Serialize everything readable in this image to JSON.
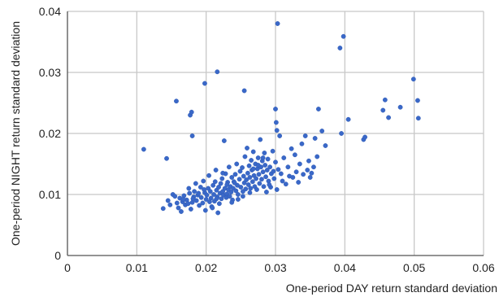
{
  "chart_data": {
    "type": "scatter",
    "xlabel": "One-period DAY return standard deviation",
    "ylabel": "One-period NIGHT return standard deviation",
    "xlim": [
      0,
      0.06
    ],
    "ylim": [
      0,
      0.04
    ],
    "xticks": [
      "0",
      "0.01",
      "0.02",
      "0.03",
      "0.04",
      "0.05",
      "0.06"
    ],
    "yticks": [
      "0",
      "0.01",
      "0.02",
      "0.03",
      "0.04"
    ],
    "grid": true,
    "marker_color": "#3a68c8",
    "series": [
      {
        "points": [
          [
            0.011,
            0.0174
          ],
          [
            0.0143,
            0.0159
          ],
          [
            0.0157,
            0.0253
          ],
          [
            0.0177,
            0.023
          ],
          [
            0.0179,
            0.0235
          ],
          [
            0.018,
            0.0196
          ],
          [
            0.0198,
            0.0282
          ],
          [
            0.0216,
            0.0301
          ],
          [
            0.0255,
            0.027
          ],
          [
            0.03,
            0.024
          ],
          [
            0.0303,
            0.038
          ],
          [
            0.0301,
            0.0218
          ],
          [
            0.0302,
            0.0205
          ],
          [
            0.0393,
            0.034
          ],
          [
            0.0398,
            0.0359
          ],
          [
            0.0362,
            0.024
          ],
          [
            0.0367,
            0.0204
          ],
          [
            0.0372,
            0.018
          ],
          [
            0.0395,
            0.02
          ],
          [
            0.0405,
            0.0223
          ],
          [
            0.0427,
            0.019
          ],
          [
            0.0429,
            0.0194
          ],
          [
            0.0455,
            0.0238
          ],
          [
            0.0458,
            0.0255
          ],
          [
            0.0463,
            0.0226
          ],
          [
            0.048,
            0.0243
          ],
          [
            0.0499,
            0.0289
          ],
          [
            0.0505,
            0.0254
          ],
          [
            0.0506,
            0.0225
          ],
          [
            0.0138,
            0.0077
          ],
          [
            0.0145,
            0.009
          ],
          [
            0.0148,
            0.0083
          ],
          [
            0.0152,
            0.01
          ],
          [
            0.0155,
            0.0097
          ],
          [
            0.0158,
            0.0086
          ],
          [
            0.016,
            0.0078
          ],
          [
            0.0162,
            0.0094
          ],
          [
            0.0164,
            0.0072
          ],
          [
            0.0166,
            0.0088
          ],
          [
            0.0168,
            0.0098
          ],
          [
            0.017,
            0.0083
          ],
          [
            0.0172,
            0.0091
          ],
          [
            0.0175,
            0.011
          ],
          [
            0.0176,
            0.0102
          ],
          [
            0.0178,
            0.0076
          ],
          [
            0.018,
            0.0087
          ],
          [
            0.0182,
            0.0096
          ],
          [
            0.0183,
            0.0105
          ],
          [
            0.0185,
            0.0118
          ],
          [
            0.0186,
            0.009
          ],
          [
            0.0188,
            0.0099
          ],
          [
            0.019,
            0.0082
          ],
          [
            0.0192,
            0.0112
          ],
          [
            0.0193,
            0.0095
          ],
          [
            0.0195,
            0.0086
          ],
          [
            0.0196,
            0.0122
          ],
          [
            0.0198,
            0.0103
          ],
          [
            0.0199,
            0.0074
          ],
          [
            0.02,
            0.0092
          ],
          [
            0.0201,
            0.0099
          ],
          [
            0.0203,
            0.011
          ],
          [
            0.0204,
            0.0131
          ],
          [
            0.0205,
            0.0088
          ],
          [
            0.0206,
            0.0105
          ],
          [
            0.0207,
            0.0094
          ],
          [
            0.0208,
            0.008
          ],
          [
            0.021,
            0.0115
          ],
          [
            0.0211,
            0.01
          ],
          [
            0.0212,
            0.0089
          ],
          [
            0.0213,
            0.0121
          ],
          [
            0.0214,
            0.014
          ],
          [
            0.0215,
            0.0107
          ],
          [
            0.0216,
            0.0096
          ],
          [
            0.0217,
            0.007
          ],
          [
            0.0218,
            0.0112
          ],
          [
            0.0219,
            0.0085
          ],
          [
            0.022,
            0.0102
          ],
          [
            0.0221,
            0.0118
          ],
          [
            0.0222,
            0.0093
          ],
          [
            0.0223,
            0.0126
          ],
          [
            0.0224,
            0.0105
          ],
          [
            0.0225,
            0.0099
          ],
          [
            0.0226,
            0.0188
          ],
          [
            0.0227,
            0.011
          ],
          [
            0.0228,
            0.0134
          ],
          [
            0.0229,
            0.0095
          ],
          [
            0.023,
            0.0101
          ],
          [
            0.0231,
            0.012
          ],
          [
            0.0232,
            0.0108
          ],
          [
            0.0233,
            0.0145
          ],
          [
            0.0234,
            0.0097
          ],
          [
            0.0235,
            0.0113
          ],
          [
            0.0236,
            0.0104
          ],
          [
            0.0237,
            0.0128
          ],
          [
            0.0238,
            0.0091
          ],
          [
            0.0239,
            0.011
          ],
          [
            0.024,
            0.0121
          ],
          [
            0.0242,
            0.0133
          ],
          [
            0.0243,
            0.0106
          ],
          [
            0.0244,
            0.015
          ],
          [
            0.0245,
            0.0115
          ],
          [
            0.0246,
            0.01
          ],
          [
            0.0248,
            0.0125
          ],
          [
            0.0249,
            0.0138
          ],
          [
            0.025,
            0.0112
          ],
          [
            0.0252,
            0.0144
          ],
          [
            0.0253,
            0.0105
          ],
          [
            0.0254,
            0.013
          ],
          [
            0.0255,
            0.0119
          ],
          [
            0.0256,
            0.0162
          ],
          [
            0.0257,
            0.0109
          ],
          [
            0.0258,
            0.0124
          ],
          [
            0.0259,
            0.0176
          ],
          [
            0.026,
            0.0135
          ],
          [
            0.0261,
            0.0116
          ],
          [
            0.0262,
            0.0147
          ],
          [
            0.0263,
            0.0128
          ],
          [
            0.0264,
            0.011
          ],
          [
            0.0265,
            0.0156
          ],
          [
            0.0266,
            0.014
          ],
          [
            0.0267,
            0.0121
          ],
          [
            0.0268,
            0.017
          ],
          [
            0.0269,
            0.0131
          ],
          [
            0.027,
            0.0113
          ],
          [
            0.0271,
            0.015
          ],
          [
            0.0272,
            0.0126
          ],
          [
            0.0273,
            0.0108
          ],
          [
            0.0274,
            0.0142
          ],
          [
            0.0275,
            0.016
          ],
          [
            0.0276,
            0.0133
          ],
          [
            0.0277,
            0.0118
          ],
          [
            0.0278,
            0.019
          ],
          [
            0.0279,
            0.0145
          ],
          [
            0.028,
            0.0125
          ],
          [
            0.0281,
            0.0155
          ],
          [
            0.0282,
            0.0137
          ],
          [
            0.0283,
            0.0113
          ],
          [
            0.0284,
            0.0168
          ],
          [
            0.0285,
            0.0148
          ],
          [
            0.0286,
            0.0129
          ],
          [
            0.0287,
            0.0104
          ],
          [
            0.0288,
            0.014
          ],
          [
            0.0289,
            0.0158
          ],
          [
            0.029,
            0.0122
          ],
          [
            0.0292,
            0.0145
          ],
          [
            0.0293,
            0.0112
          ],
          [
            0.0294,
            0.0134
          ],
          [
            0.0296,
            0.0171
          ],
          [
            0.0298,
            0.0126
          ],
          [
            0.03,
            0.0153
          ],
          [
            0.0302,
            0.0108
          ],
          [
            0.0304,
            0.0141
          ],
          [
            0.0306,
            0.0196
          ],
          [
            0.0308,
            0.0134
          ],
          [
            0.031,
            0.0122
          ],
          [
            0.0312,
            0.016
          ],
          [
            0.0315,
            0.0117
          ],
          [
            0.0318,
            0.0145
          ],
          [
            0.032,
            0.013
          ],
          [
            0.0323,
            0.0175
          ],
          [
            0.0325,
            0.0128
          ],
          [
            0.0328,
            0.0165
          ],
          [
            0.033,
            0.0137
          ],
          [
            0.0333,
            0.012
          ],
          [
            0.0335,
            0.015
          ],
          [
            0.0338,
            0.0183
          ],
          [
            0.034,
            0.0133
          ],
          [
            0.0343,
            0.0196
          ],
          [
            0.0346,
            0.014
          ],
          [
            0.0348,
            0.0155
          ],
          [
            0.035,
            0.0128
          ],
          [
            0.0352,
            0.0135
          ],
          [
            0.0355,
            0.0145
          ],
          [
            0.0357,
            0.0192
          ],
          [
            0.036,
            0.0162
          ],
          [
            0.0224,
            0.0135
          ],
          [
            0.023,
            0.0116
          ],
          [
            0.0215,
            0.0093
          ],
          [
            0.0197,
            0.0108
          ],
          [
            0.0189,
            0.0102
          ],
          [
            0.0181,
            0.0093
          ],
          [
            0.0174,
            0.0085
          ],
          [
            0.0167,
            0.0092
          ],
          [
            0.0246,
            0.0092
          ],
          [
            0.0237,
            0.0087
          ],
          [
            0.0209,
            0.0078
          ],
          [
            0.0241,
            0.0119
          ],
          [
            0.0263,
            0.0103
          ],
          [
            0.0275,
            0.0148
          ],
          [
            0.0291,
            0.0116
          ],
          [
            0.0297,
            0.0138
          ],
          [
            0.0268,
            0.0142
          ],
          [
            0.0282,
            0.016
          ],
          [
            0.0253,
            0.0097
          ]
        ]
      }
    ]
  }
}
